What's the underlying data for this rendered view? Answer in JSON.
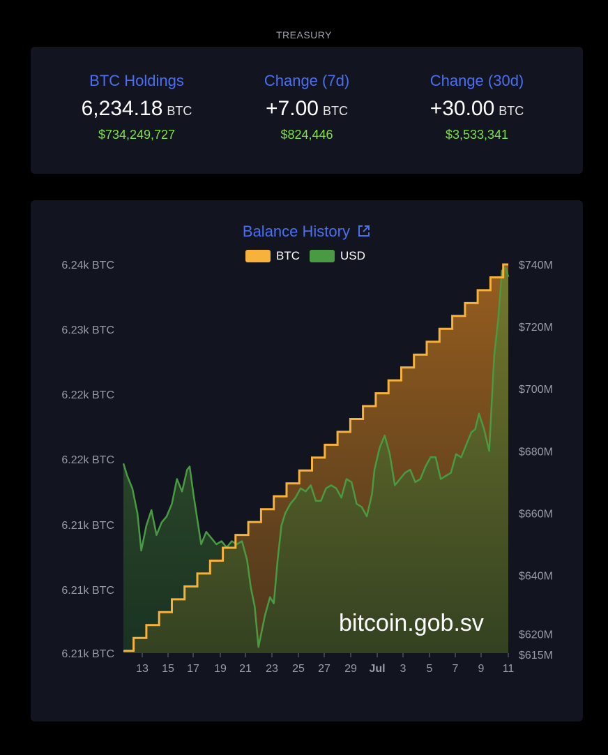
{
  "header": {
    "label": "TREASURY"
  },
  "stats": [
    {
      "title": "BTC Holdings",
      "value": "6,234.18",
      "unit": "BTC",
      "usd": "$734,249,727"
    },
    {
      "title": "Change (7d)",
      "value": "+7.00",
      "unit": "BTC",
      "usd": "$824,446"
    },
    {
      "title": "Change (30d)",
      "value": "+30.00",
      "unit": "BTC",
      "usd": "$3,533,341"
    }
  ],
  "chart": {
    "title": "Balance History",
    "link_icon": "external-link-icon",
    "legend": [
      {
        "label": "BTC",
        "color": "#f7b23b"
      },
      {
        "label": "USD",
        "color": "#4a9a43"
      }
    ],
    "watermark": "bitcoin.gob.sv"
  },
  "colors": {
    "accent": "#4c6ef0",
    "usd_positive": "#7ee13c",
    "btc_line": "#f7b23b",
    "usd_line": "#4a9a43",
    "card_bg": "#121520"
  },
  "chart_data": {
    "type": "line",
    "title": "Balance History",
    "x_tick_labels": [
      "13",
      "15",
      "17",
      "19",
      "21",
      "23",
      "25",
      "27",
      "29",
      "Jul",
      "3",
      "5",
      "7",
      "9",
      "11"
    ],
    "y_left": {
      "unit": "BTC",
      "tick_labels": [
        "6.24k BTC",
        "6.23k BTC",
        "6.22k BTC",
        "6.22k BTC",
        "6.21k BTC",
        "6.21k BTC",
        "6.21k BTC"
      ],
      "range": [
        6204,
        6234.18
      ]
    },
    "y_right": {
      "unit": "USD",
      "tick_labels": [
        "$740M",
        "$720M",
        "$700M",
        "$680M",
        "$660M",
        "$640M",
        "$620M",
        "$615M"
      ],
      "range": [
        615,
        740
      ]
    },
    "series": [
      {
        "name": "BTC",
        "axis": "left",
        "step": true,
        "x": [
          11.7,
          12.5,
          13.5,
          14.5,
          15.5,
          16.5,
          17.5,
          18.5,
          19.5,
          20.5,
          21.5,
          22.5,
          23.5,
          24.5,
          25.5,
          26.5,
          27.5,
          28.5,
          29.5,
          30.5,
          31.5,
          32.5,
          33.5,
          34.5,
          35.5,
          36.5,
          37.5,
          38.5,
          39.5,
          40.5,
          41.5,
          41.9
        ],
        "y": [
          6204.18,
          6205.18,
          6206.18,
          6207.18,
          6208.18,
          6209.18,
          6210.18,
          6211.18,
          6212.18,
          6213.18,
          6214.18,
          6215.18,
          6216.18,
          6217.18,
          6218.18,
          6219.18,
          6220.18,
          6221.18,
          6222.18,
          6223.18,
          6224.18,
          6225.18,
          6226.18,
          6227.18,
          6228.18,
          6229.18,
          6230.18,
          6231.18,
          6232.18,
          6233.18,
          6234.18,
          6234.18
        ]
      },
      {
        "name": "USD",
        "axis": "right",
        "x": [
          11.7,
          12.0,
          12.4,
          12.8,
          13.1,
          13.5,
          13.9,
          14.3,
          14.7,
          15.1,
          15.5,
          15.9,
          16.3,
          16.7,
          16.9,
          17.2,
          17.5,
          17.8,
          18.2,
          18.6,
          19.0,
          19.4,
          19.8,
          20.2,
          20.6,
          21.0,
          21.4,
          21.7,
          22.0,
          22.3,
          22.5,
          22.8,
          23.2,
          23.5,
          23.8,
          24.1,
          24.4,
          24.8,
          25.2,
          25.6,
          26.0,
          26.4,
          26.8,
          27.2,
          27.6,
          28.0,
          28.4,
          28.8,
          29.2,
          29.6,
          30.0,
          30.4,
          30.8,
          31.2,
          31.4,
          31.8,
          32.2,
          32.6,
          33.0,
          33.4,
          33.8,
          34.2,
          34.6,
          35.0,
          35.4,
          35.8,
          36.2,
          36.6,
          37.0,
          37.4,
          37.8,
          38.2,
          38.6,
          39.0,
          39.3,
          39.6,
          40.0,
          40.4,
          40.8,
          41.1,
          41.4,
          41.7,
          41.9
        ],
        "y": [
          676,
          672,
          668,
          660,
          648,
          656,
          661,
          653,
          657,
          659,
          663,
          671,
          667,
          674,
          675,
          666,
          658,
          650,
          654,
          652,
          650,
          651,
          649,
          651,
          650,
          651,
          645,
          636,
          630,
          617,
          621,
          627,
          633,
          631,
          645,
          656,
          660,
          663,
          665,
          668,
          667,
          669,
          664,
          664,
          668,
          669,
          668,
          665,
          671,
          670,
          663,
          662,
          659,
          666,
          674,
          681,
          685,
          679,
          669,
          671,
          673,
          674,
          670,
          671,
          675,
          678,
          678,
          671,
          672,
          673,
          679,
          678,
          682,
          686,
          687,
          692,
          687,
          680,
          711,
          722,
          738,
          739,
          736
        ]
      }
    ]
  }
}
